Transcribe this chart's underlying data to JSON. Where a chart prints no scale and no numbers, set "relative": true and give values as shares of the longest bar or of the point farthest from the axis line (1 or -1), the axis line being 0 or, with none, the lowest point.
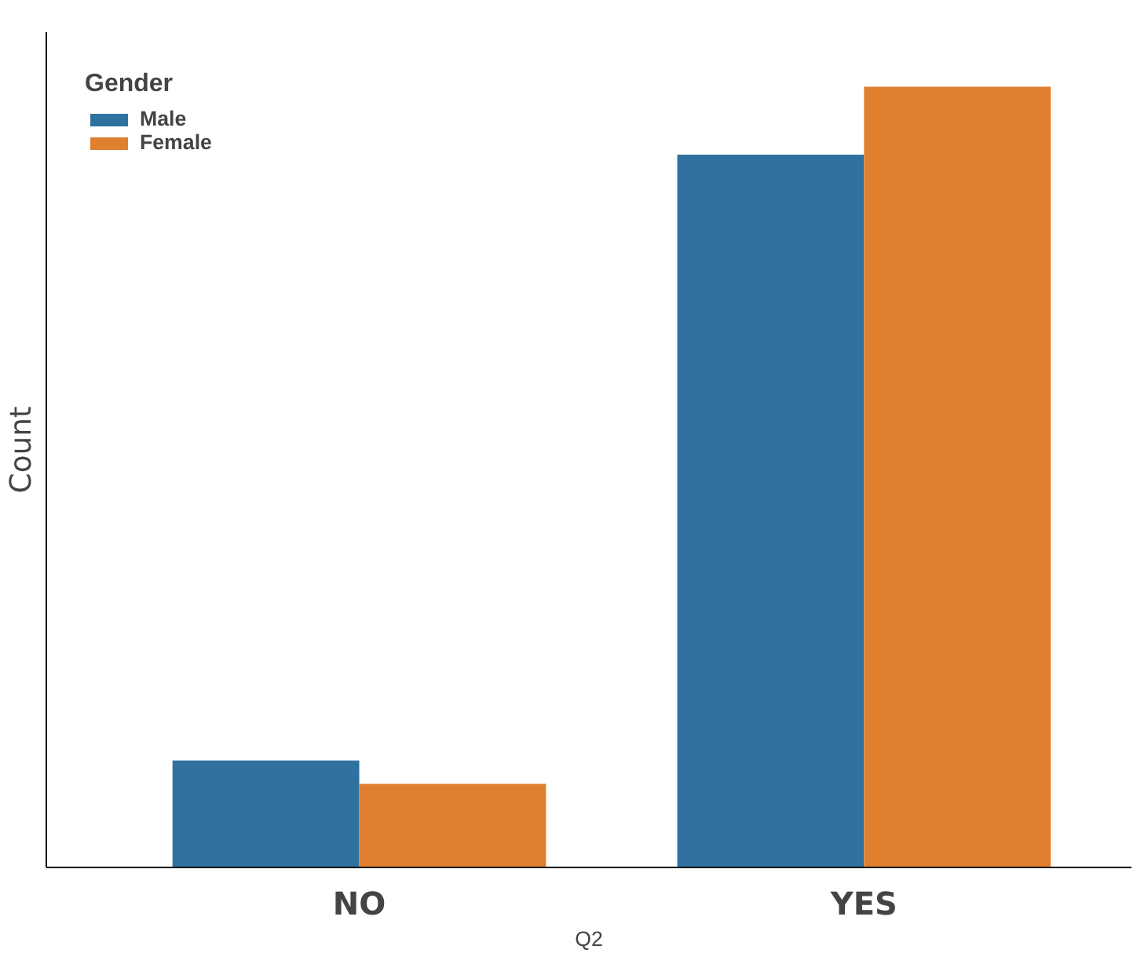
{
  "chart_data": {
    "type": "bar",
    "relative": true,
    "xlabel": "Q2",
    "ylabel": "Count",
    "legend_title": "Gender",
    "legend": "top left",
    "categories": [
      "NO",
      "YES"
    ],
    "series": [
      {
        "name": "Male",
        "color": "#2f72a0",
        "values": [
          0.137,
          0.913
        ]
      },
      {
        "name": "Female",
        "color": "#e0802e",
        "values": [
          0.107,
          1.0
        ]
      }
    ]
  }
}
